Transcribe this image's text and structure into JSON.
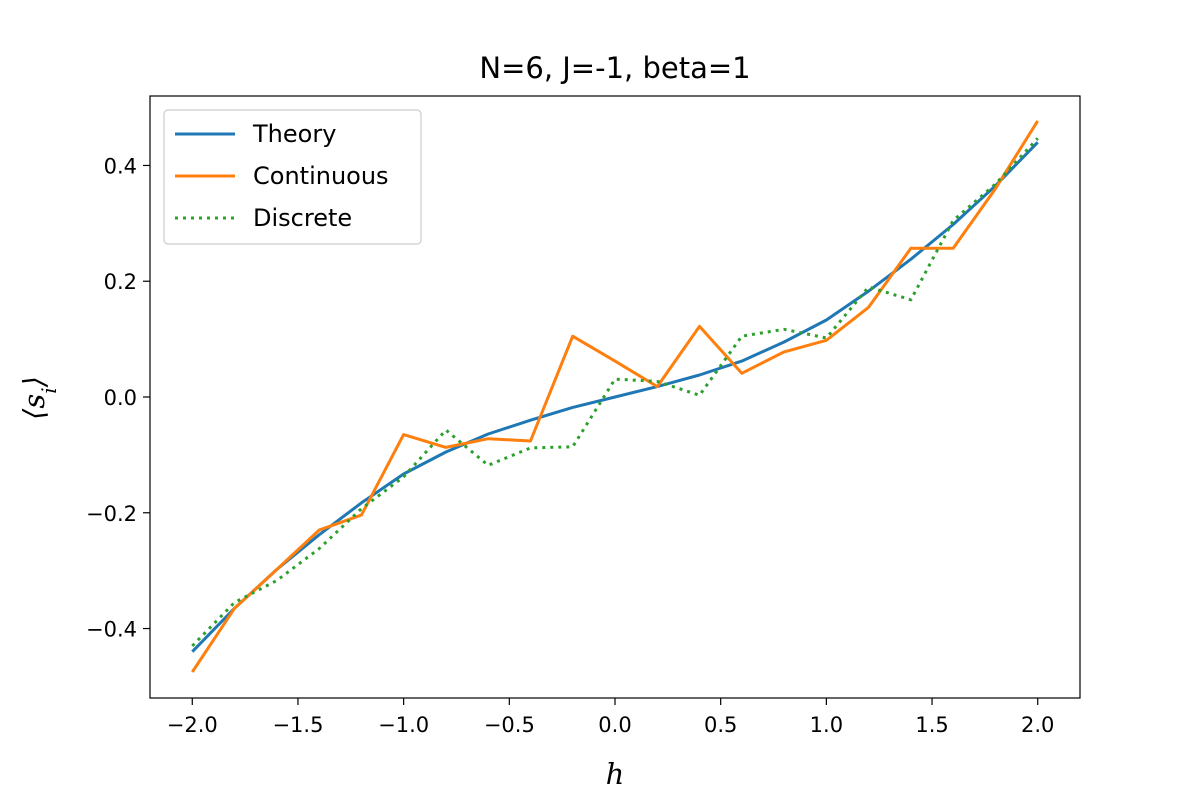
{
  "chart_data": {
    "type": "line",
    "title": "N=6, J=-1, beta=1",
    "xlabel": "h",
    "ylabel": "⟨s_i⟩",
    "xlim": [
      -2.2,
      2.2
    ],
    "ylim": [
      -0.52,
      0.52
    ],
    "x_ticks": [
      -2.0,
      -1.5,
      -1.0,
      -0.5,
      0.0,
      0.5,
      1.0,
      1.5,
      2.0
    ],
    "x_tick_labels": [
      "−2.0",
      "−1.5",
      "−1.0",
      "−0.5",
      "0.0",
      "0.5",
      "1.0",
      "1.5",
      "2.0"
    ],
    "y_ticks": [
      -0.4,
      -0.2,
      0.0,
      0.2,
      0.4
    ],
    "y_tick_labels": [
      "−0.4",
      "−0.2",
      "0.0",
      "0.2",
      "0.4"
    ],
    "grid": false,
    "legend_position": "top-left",
    "x": [
      -2.0,
      -1.8,
      -1.6,
      -1.4,
      -1.2,
      -1.0,
      -0.8,
      -0.6,
      -0.4,
      -0.2,
      0.0,
      0.2,
      0.4,
      0.6,
      0.8,
      1.0,
      1.2,
      1.4,
      1.6,
      1.8,
      2.0
    ],
    "series": [
      {
        "name": "Theory",
        "color": "#1f77b4",
        "style": "solid",
        "values": [
          -0.44,
          -0.365,
          -0.298,
          -0.238,
          -0.183,
          -0.133,
          -0.095,
          -0.064,
          -0.04,
          -0.018,
          0.0,
          0.018,
          0.038,
          0.062,
          0.095,
          0.133,
          0.183,
          0.238,
          0.298,
          0.365,
          0.44
        ]
      },
      {
        "name": "Continuous",
        "color": "#ff7f0e",
        "style": "solid",
        "values": [
          -0.475,
          -0.365,
          -0.298,
          -0.23,
          -0.204,
          -0.065,
          -0.087,
          -0.072,
          -0.076,
          0.105,
          0.062,
          0.018,
          0.122,
          0.041,
          0.078,
          0.098,
          0.155,
          0.257,
          0.257,
          0.36,
          0.477
        ]
      },
      {
        "name": "Discrete",
        "color": "#2ca02c",
        "style": "dotted",
        "values": [
          -0.43,
          -0.355,
          -0.317,
          -0.262,
          -0.193,
          -0.138,
          -0.057,
          -0.118,
          -0.088,
          -0.086,
          0.031,
          0.027,
          0.003,
          0.105,
          0.117,
          0.102,
          0.19,
          0.168,
          0.305,
          0.368,
          0.447
        ]
      }
    ]
  }
}
